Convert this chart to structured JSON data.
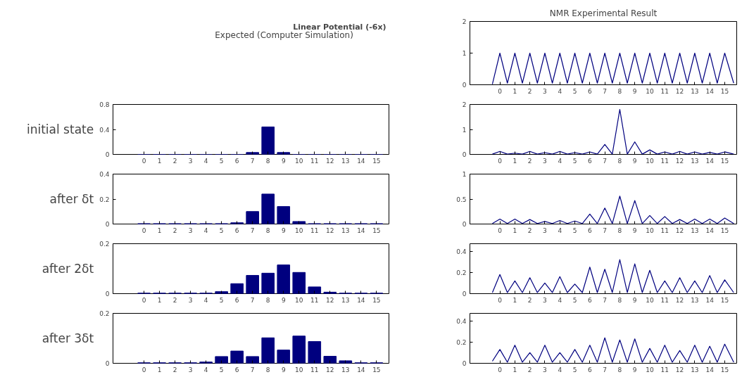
{
  "chart_data": [
    {
      "type": "other",
      "title": "Linear Potential (-6x)",
      "annotations": [
        "Expected (Computer Simulation)"
      ]
    },
    {
      "type": "line",
      "title": "NMR Experimental Result",
      "xlim": [
        -2,
        15.8
      ],
      "xticks": [
        0,
        1,
        2,
        3,
        4,
        5,
        6,
        7,
        8,
        9,
        10,
        11,
        12,
        13,
        14,
        15
      ],
      "ylim": [
        0,
        2
      ],
      "yticks": [
        0,
        1,
        2
      ],
      "grid": false,
      "color": "#00007f",
      "x": [
        -0.5,
        0,
        0.5,
        1,
        1.5,
        2,
        2.5,
        3,
        3.5,
        4,
        4.5,
        5,
        5.5,
        6,
        6.5,
        7,
        7.5,
        8,
        8.5,
        9,
        9.5,
        10,
        10.5,
        11,
        11.5,
        12,
        12.5,
        13,
        13.5,
        14,
        14.5,
        15,
        15.6
      ],
      "values": [
        0.02,
        1,
        0.05,
        1,
        0.05,
        1,
        0.05,
        1,
        0.05,
        1,
        0.05,
        1,
        0.05,
        1,
        0.05,
        1,
        0.05,
        1,
        0.05,
        1,
        0.05,
        1,
        0.05,
        1,
        0.05,
        1,
        0.05,
        1,
        0.05,
        1,
        0.05,
        1,
        0.05
      ]
    },
    {
      "type": "bar",
      "ylabel": "initial state",
      "x": [
        0,
        1,
        2,
        3,
        4,
        5,
        6,
        7,
        8,
        9,
        10,
        11,
        12,
        13,
        14,
        15
      ],
      "xlim": [
        -2,
        15.8
      ],
      "xticks": [
        0,
        1,
        2,
        3,
        4,
        5,
        6,
        7,
        8,
        9,
        10,
        11,
        12,
        13,
        14,
        15
      ],
      "ylim": [
        0,
        0.8
      ],
      "yticks": [
        0,
        0.4,
        0.8
      ],
      "grid": false,
      "color": "#00007f",
      "values": [
        0,
        0,
        0,
        0,
        0,
        0,
        0,
        0.03,
        0.44,
        0.03,
        0,
        0,
        0,
        0,
        0,
        0
      ]
    },
    {
      "type": "line",
      "xlim": [
        -2,
        15.8
      ],
      "xticks": [
        0,
        1,
        2,
        3,
        4,
        5,
        6,
        7,
        8,
        9,
        10,
        11,
        12,
        13,
        14,
        15
      ],
      "ylim": [
        0,
        2
      ],
      "yticks": [
        0,
        1,
        2
      ],
      "grid": false,
      "color": "#00007f",
      "x": [
        -0.5,
        0,
        0.5,
        1,
        1.5,
        2,
        2.5,
        3,
        3.5,
        4,
        4.5,
        5,
        5.5,
        6,
        6.5,
        7,
        7.5,
        8,
        8.5,
        9,
        9.5,
        10,
        10.5,
        11,
        11.5,
        12,
        12.5,
        13,
        13.5,
        14,
        14.5,
        15,
        15.6
      ],
      "values": [
        0.01,
        0.12,
        0.01,
        0.05,
        0.01,
        0.12,
        0.01,
        0.07,
        0.01,
        0.12,
        0.01,
        0.07,
        0.01,
        0.1,
        0.01,
        0.4,
        0.01,
        1.8,
        0.01,
        0.5,
        0.01,
        0.18,
        0.01,
        0.1,
        0.01,
        0.12,
        0.01,
        0.1,
        0.01,
        0.08,
        0.01,
        0.1,
        0.01
      ]
    },
    {
      "type": "bar",
      "ylabel": "after δt",
      "x": [
        0,
        1,
        2,
        3,
        4,
        5,
        6,
        7,
        8,
        9,
        10,
        11,
        12,
        13,
        14,
        15
      ],
      "xlim": [
        -2,
        15.8
      ],
      "xticks": [
        0,
        1,
        2,
        3,
        4,
        5,
        6,
        7,
        8,
        9,
        10,
        11,
        12,
        13,
        14,
        15
      ],
      "ylim": [
        0,
        0.4
      ],
      "yticks": [
        0,
        0.2,
        0.4
      ],
      "grid": false,
      "color": "#00007f",
      "values": [
        0.003,
        0.003,
        0.003,
        0.003,
        0.003,
        0.003,
        0.01,
        0.1,
        0.24,
        0.14,
        0.02,
        0.003,
        0.003,
        0.003,
        0.003,
        0.003
      ]
    },
    {
      "type": "line",
      "xlim": [
        -2,
        15.8
      ],
      "xticks": [
        0,
        1,
        2,
        3,
        4,
        5,
        6,
        7,
        8,
        9,
        10,
        11,
        12,
        13,
        14,
        15
      ],
      "ylim": [
        0,
        1
      ],
      "yticks": [
        0,
        0.5,
        1
      ],
      "grid": false,
      "color": "#00007f",
      "x": [
        -0.5,
        0,
        0.5,
        1,
        1.5,
        2,
        2.5,
        3,
        3.5,
        4,
        4.5,
        5,
        5.5,
        6,
        6.5,
        7,
        7.5,
        8,
        8.5,
        9,
        9.5,
        10,
        10.5,
        11,
        11.5,
        12,
        12.5,
        13,
        13.5,
        14,
        14.5,
        15,
        15.6
      ],
      "values": [
        0.01,
        0.1,
        0.01,
        0.1,
        0.01,
        0.09,
        0.01,
        0.05,
        0.01,
        0.07,
        0.01,
        0.06,
        0.01,
        0.2,
        0.01,
        0.32,
        0.01,
        0.56,
        0.01,
        0.47,
        0.01,
        0.17,
        0.01,
        0.15,
        0.01,
        0.09,
        0.01,
        0.1,
        0.01,
        0.1,
        0.01,
        0.12,
        0.01
      ]
    },
    {
      "type": "bar",
      "ylabel": "after 2δt",
      "x": [
        0,
        1,
        2,
        3,
        4,
        5,
        6,
        7,
        8,
        9,
        10,
        11,
        12,
        13,
        14,
        15
      ],
      "xlim": [
        -2,
        15.8
      ],
      "xticks": [
        0,
        1,
        2,
        3,
        4,
        5,
        6,
        7,
        8,
        9,
        10,
        11,
        12,
        13,
        14,
        15
      ],
      "ylim": [
        0,
        0.2
      ],
      "yticks": [
        0,
        0.2
      ],
      "grid": false,
      "color": "#00007f",
      "values": [
        0.002,
        0.002,
        0.002,
        0.002,
        0.002,
        0.008,
        0.04,
        0.073,
        0.082,
        0.115,
        0.085,
        0.027,
        0.006,
        0.002,
        0.002,
        0.002
      ]
    },
    {
      "type": "line",
      "xlim": [
        -2,
        15.8
      ],
      "xticks": [
        0,
        1,
        2,
        3,
        4,
        5,
        6,
        7,
        8,
        9,
        10,
        11,
        12,
        13,
        14,
        15
      ],
      "ylim": [
        0,
        0.47
      ],
      "yticks": [
        0,
        0.2,
        0.4
      ],
      "grid": false,
      "color": "#00007f",
      "x": [
        -0.5,
        0,
        0.5,
        1,
        1.5,
        2,
        2.5,
        3,
        3.5,
        4,
        4.5,
        5,
        5.5,
        6,
        6.5,
        7,
        7.5,
        8,
        8.5,
        9,
        9.5,
        10,
        10.5,
        11,
        11.5,
        12,
        12.5,
        13,
        13.5,
        14,
        14.5,
        15,
        15.6
      ],
      "values": [
        0.01,
        0.18,
        0.01,
        0.12,
        0.01,
        0.15,
        0.01,
        0.1,
        0.01,
        0.16,
        0.01,
        0.09,
        0.01,
        0.25,
        0.01,
        0.23,
        0.01,
        0.32,
        0.01,
        0.28,
        0.01,
        0.22,
        0.01,
        0.12,
        0.01,
        0.15,
        0.01,
        0.12,
        0.01,
        0.17,
        0.01,
        0.13,
        0.01
      ]
    },
    {
      "type": "bar",
      "ylabel": "after 3δt",
      "x": [
        0,
        1,
        2,
        3,
        4,
        5,
        6,
        7,
        8,
        9,
        10,
        11,
        12,
        13,
        14,
        15
      ],
      "xlim": [
        -2,
        15.8
      ],
      "xticks": [
        0,
        1,
        2,
        3,
        4,
        5,
        6,
        7,
        8,
        9,
        10,
        11,
        12,
        13,
        14,
        15
      ],
      "ylim": [
        0,
        0.2
      ],
      "yticks": [
        0,
        0.2
      ],
      "grid": false,
      "color": "#00007f",
      "values": [
        0.002,
        0.002,
        0.002,
        0.002,
        0.005,
        0.027,
        0.049,
        0.027,
        0.102,
        0.053,
        0.109,
        0.087,
        0.028,
        0.01,
        0.002,
        0.002
      ]
    },
    {
      "type": "line",
      "xlim": [
        -2,
        15.8
      ],
      "xticks": [
        0,
        1,
        2,
        3,
        4,
        5,
        6,
        7,
        8,
        9,
        10,
        11,
        12,
        13,
        14,
        15
      ],
      "ylim": [
        0,
        0.47
      ],
      "yticks": [
        0,
        0.2,
        0.4
      ],
      "grid": false,
      "color": "#00007f",
      "x": [
        -0.5,
        0,
        0.5,
        1,
        1.5,
        2,
        2.5,
        3,
        3.5,
        4,
        4.5,
        5,
        5.5,
        6,
        6.5,
        7,
        7.5,
        8,
        8.5,
        9,
        9.5,
        10,
        10.5,
        11,
        11.5,
        12,
        12.5,
        13,
        13.5,
        14,
        14.5,
        15,
        15.6
      ],
      "values": [
        0.02,
        0.13,
        0.01,
        0.17,
        0.01,
        0.1,
        0.01,
        0.17,
        0.01,
        0.1,
        0.01,
        0.13,
        0.01,
        0.17,
        0.01,
        0.24,
        0.01,
        0.22,
        0.01,
        0.23,
        0.01,
        0.14,
        0.01,
        0.17,
        0.01,
        0.12,
        0.01,
        0.17,
        0.01,
        0.16,
        0.01,
        0.18,
        0.01
      ]
    }
  ]
}
